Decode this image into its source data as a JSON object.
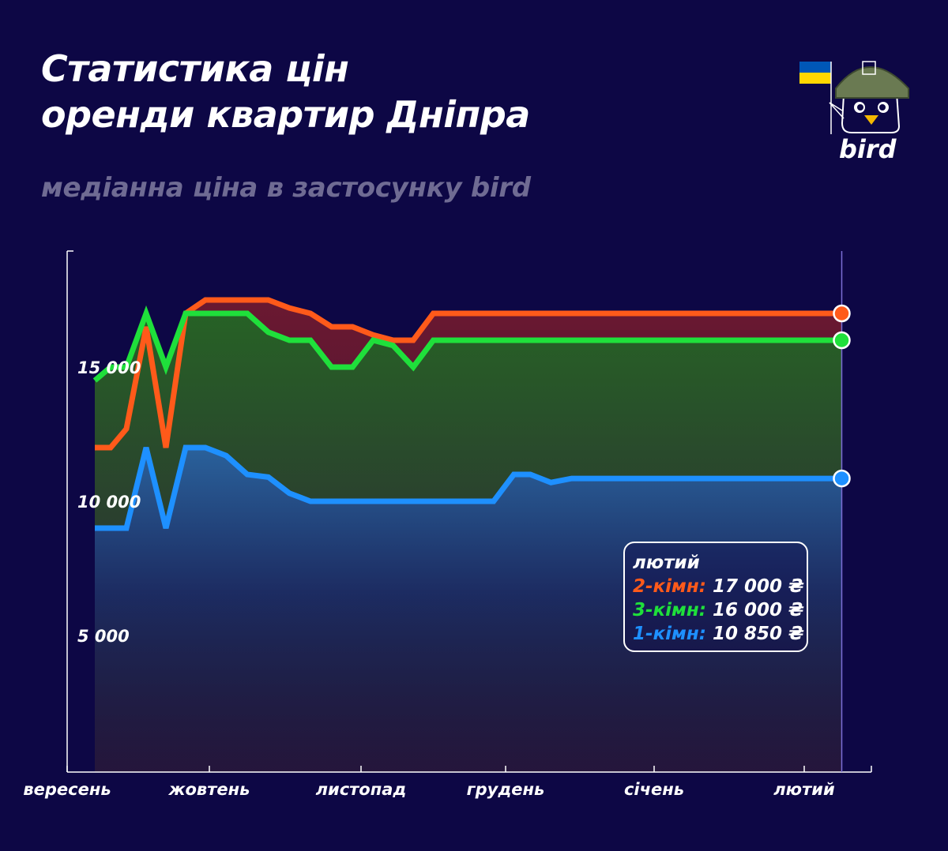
{
  "title": {
    "line1": "Статистика цін",
    "line2": "оренди квартир Дніпра"
  },
  "subtitle": "медіанна ціна в застосунку bird",
  "logo": {
    "text": "bird",
    "icon": "bird-mascot-helmet-icon",
    "flag_colors": [
      "#0057b7",
      "#ffd700"
    ]
  },
  "colors": {
    "background": "#0d0745",
    "two_room": "#ff5a1a",
    "three_room": "#1fe03b",
    "one_room": "#1e90ff"
  },
  "legend": {
    "month": "лютий",
    "items": [
      {
        "label": "2-кімн:",
        "value": "17 000 ₴",
        "color": "#ff5a1a"
      },
      {
        "label": "3-кімн:",
        "value": "16 000 ₴",
        "color": "#1fe03b"
      },
      {
        "label": "1-кімн:",
        "value": "10 850 ₴",
        "color": "#1e90ff"
      }
    ]
  },
  "chart_data": {
    "type": "area",
    "title": "Статистика цін оренди квартир Дніпра",
    "subtitle": "медіанна ціна в застосунку bird",
    "xlabel": "",
    "ylabel": "",
    "x_ticks": [
      "вересень",
      "жовтень",
      "листопад",
      "грудень",
      "січень",
      "лютий"
    ],
    "y_ticks": [
      {
        "value": 15000,
        "label": "15 000"
      },
      {
        "value": 10000,
        "label": "10 000"
      },
      {
        "value": 5000,
        "label": "5 000"
      }
    ],
    "ylim": [
      0,
      19500
    ],
    "grid": false,
    "x": [
      0.35,
      0.55,
      0.75,
      1.0,
      1.25,
      1.5,
      1.75,
      2.0,
      2.25,
      2.5,
      2.75,
      3.0,
      3.25,
      3.5,
      3.75,
      4.0,
      4.25,
      4.5,
      4.75,
      5.0,
      5.25,
      5.5,
      5.7,
      5.95,
      6.2,
      6.45,
      6.7,
      6.95,
      7.2,
      7.45,
      7.7,
      7.95,
      8.2,
      8.45,
      8.7,
      8.95,
      9.2,
      9.45
    ],
    "series": [
      {
        "name": "2-кімн",
        "color": "#ff5a1a",
        "values": [
          12000,
          12000,
          12700,
          16500,
          12000,
          17000,
          17500,
          17500,
          17500,
          17500,
          17200,
          17000,
          16500,
          16500,
          16200,
          16000,
          16000,
          17000,
          17000,
          17000,
          17000,
          17000,
          17000,
          17000,
          17000,
          17000,
          17000,
          17000,
          17000,
          17000,
          17000,
          17000,
          17000,
          17000,
          17000,
          17000,
          17000,
          17000
        ]
      },
      {
        "name": "3-кімн",
        "color": "#1fe03b",
        "values": [
          14500,
          15000,
          15000,
          17000,
          15000,
          17000,
          17000,
          17000,
          17000,
          16300,
          16000,
          16000,
          15000,
          15000,
          16000,
          15800,
          15000,
          16000,
          16000,
          16000,
          16000,
          16000,
          16000,
          16000,
          16000,
          16000,
          16000,
          16000,
          16000,
          16000,
          16000,
          16000,
          16000,
          16000,
          16000,
          16000,
          16000,
          16000
        ]
      },
      {
        "name": "1-кімн",
        "color": "#1e90ff",
        "values": [
          9000,
          9000,
          9000,
          12000,
          9000,
          12000,
          12000,
          11700,
          11000,
          10900,
          10300,
          10000,
          10000,
          10000,
          10000,
          10000,
          10000,
          10000,
          10000,
          10000,
          10000,
          11000,
          11000,
          10700,
          10850,
          10850,
          10850,
          10850,
          10850,
          10850,
          10850,
          10850,
          10850,
          10850,
          10850,
          10850,
          10850,
          10850
        ]
      }
    ]
  }
}
